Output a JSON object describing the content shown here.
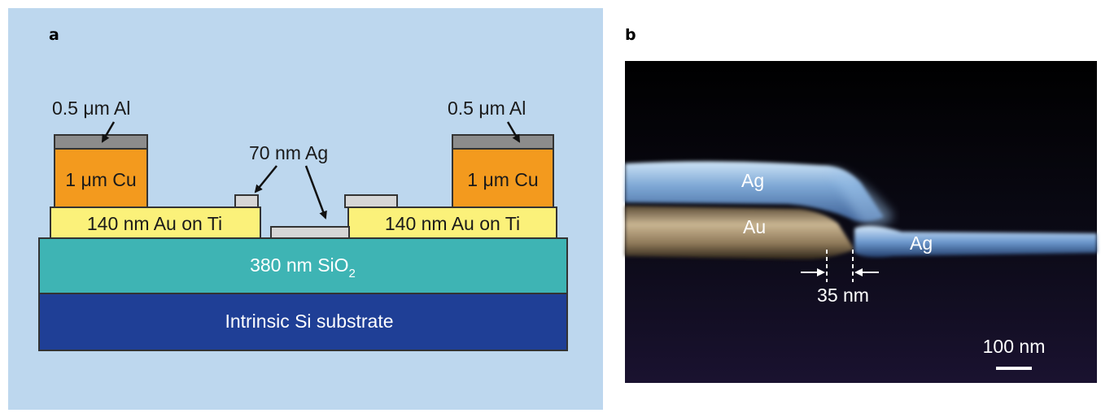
{
  "panel_a": {
    "label": "a",
    "labels": {
      "al_left": "0.5 μm Al",
      "al_right": "0.5 μm Al",
      "cu_left": "1 μm Cu",
      "cu_right": "1 μm Cu",
      "ag_70": "70 nm Ag",
      "au_left": "140 nm Au on Ti",
      "au_right": "140 nm Au on Ti",
      "sio2": "380 nm SiO",
      "sio2_sub": "2",
      "si": "Intrinsic Si substrate"
    },
    "colors": {
      "background": "#bdd7ee",
      "al": "#8c8c8c",
      "cu": "#f39a1e",
      "au": "#fbf17a",
      "ag": "#d6d6d6",
      "sio2": "#3eb4b4",
      "si": "#1f3f96"
    }
  },
  "panel_b": {
    "label": "b",
    "labels": {
      "ag_top": "Ag",
      "au": "Au",
      "ag_right": "Ag",
      "gap": "35 nm",
      "scale": "100 nm"
    }
  }
}
